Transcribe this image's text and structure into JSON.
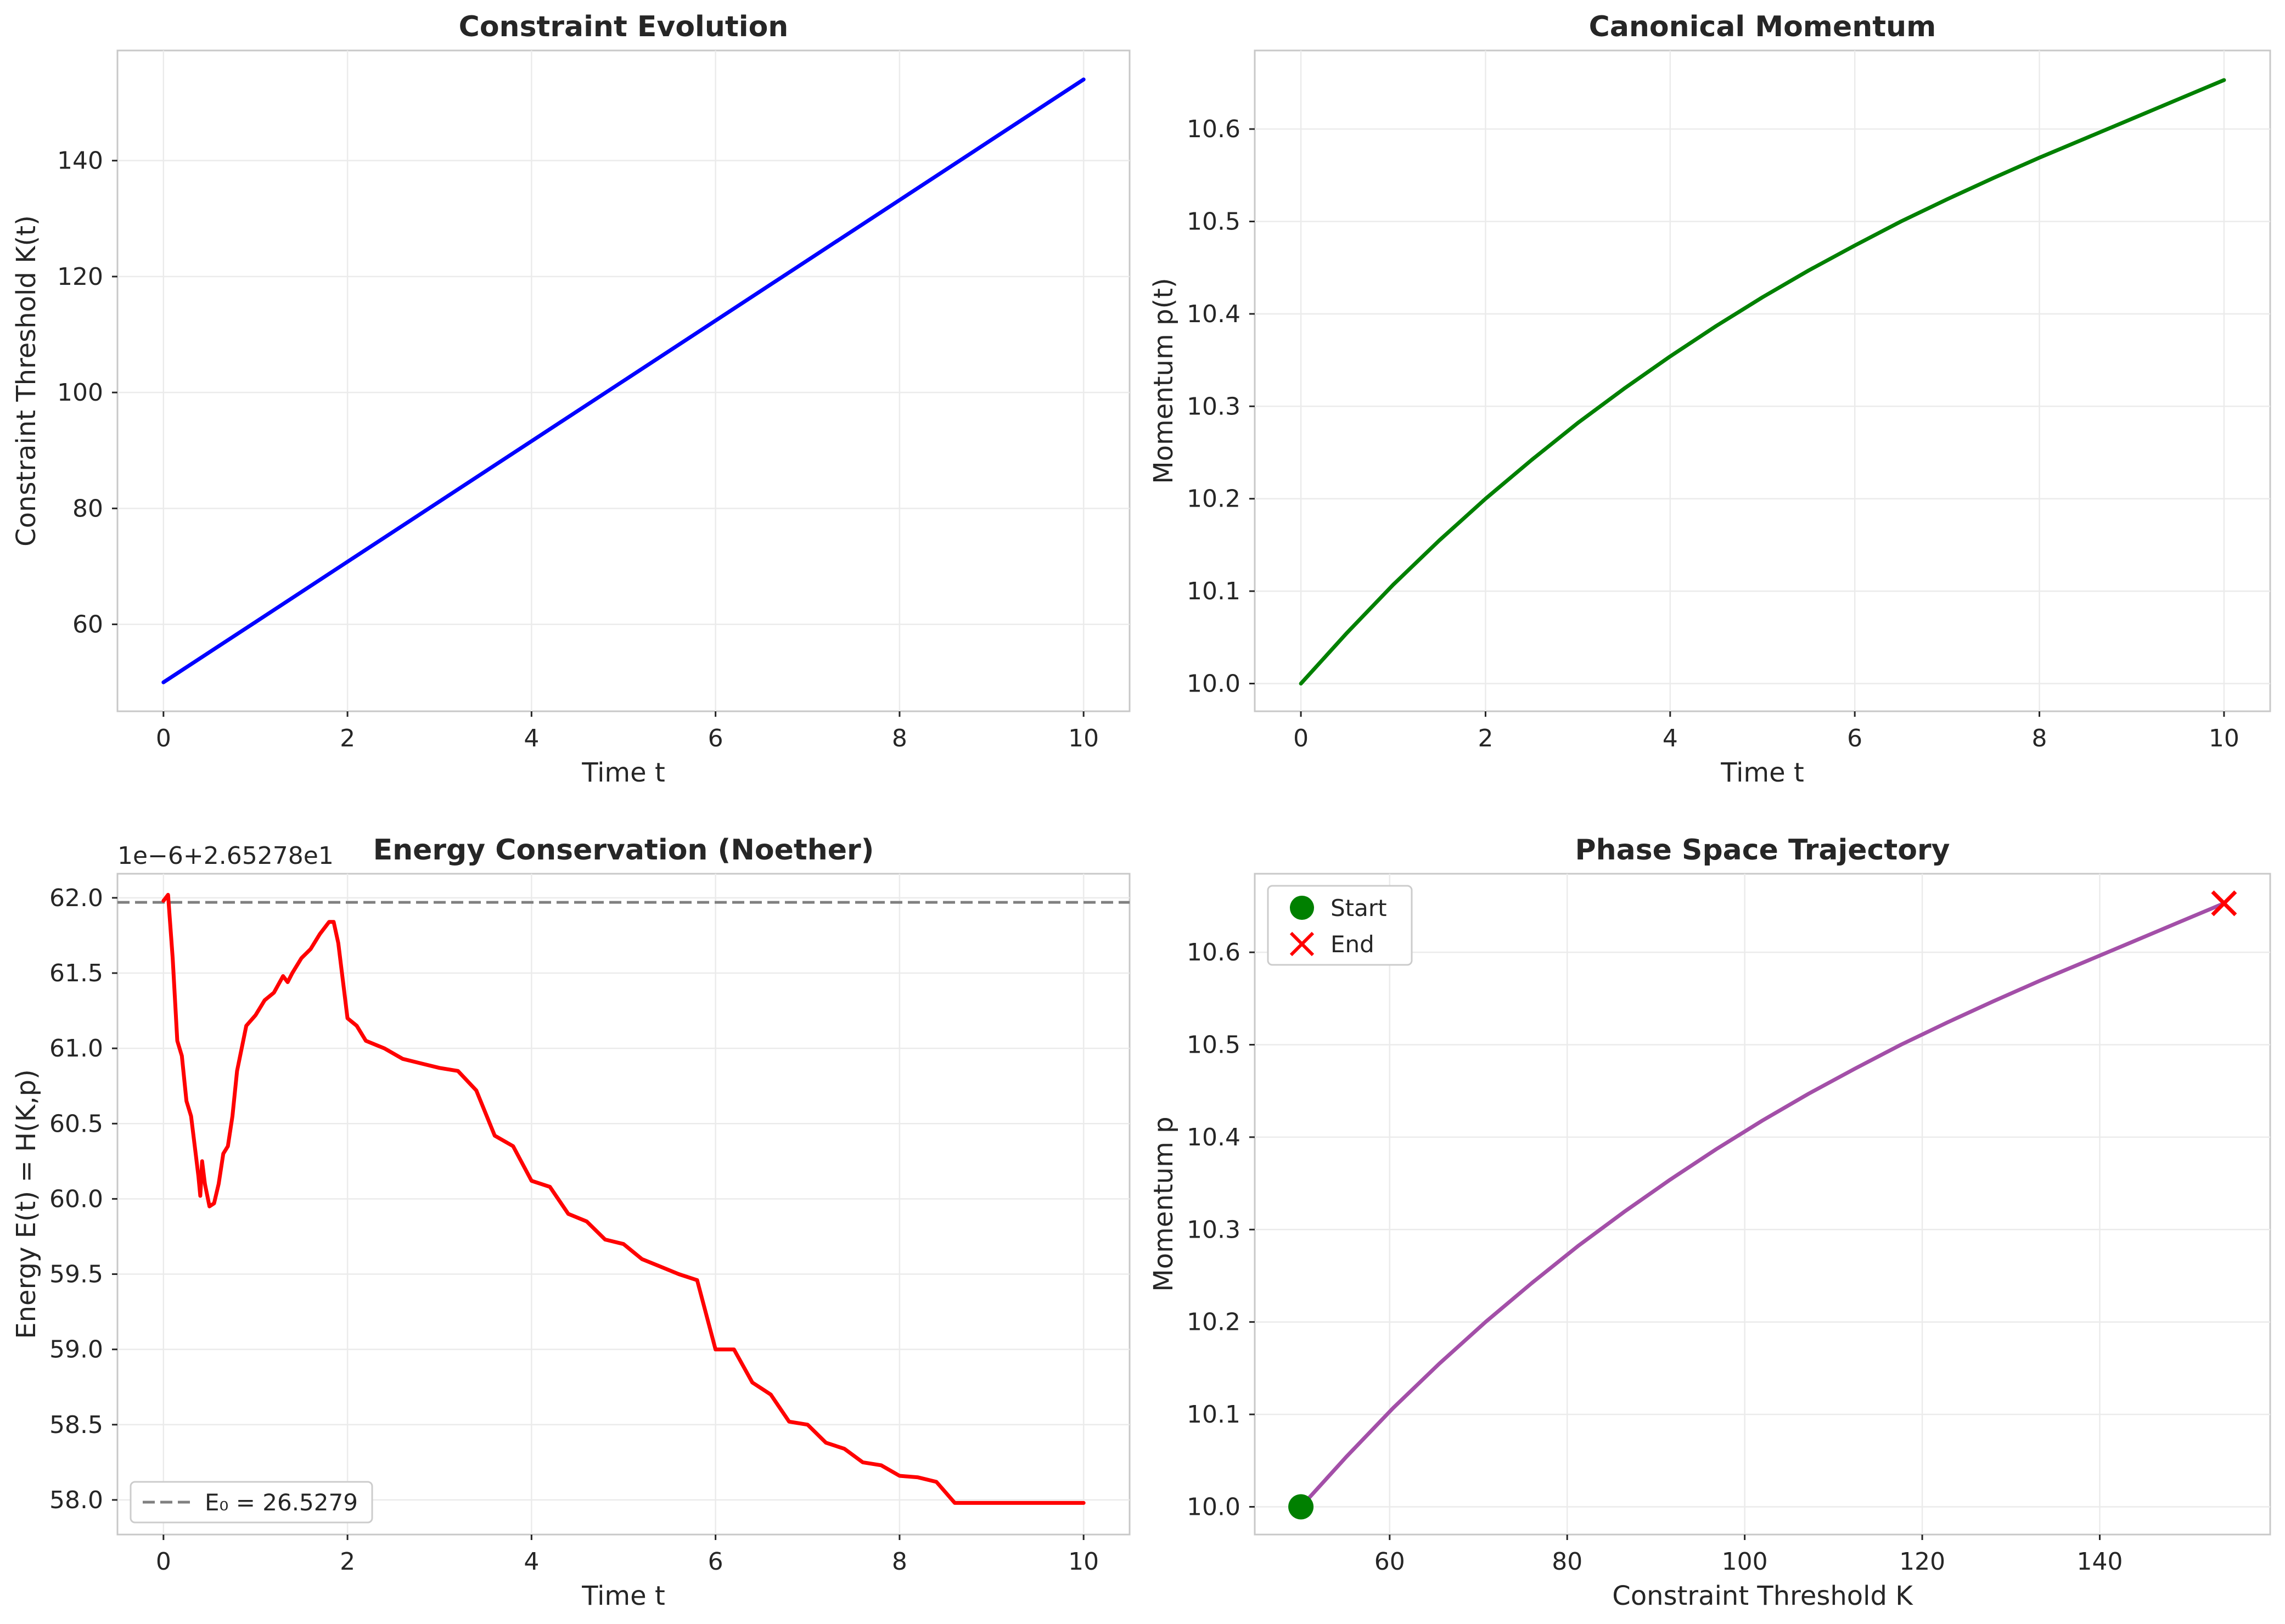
{
  "chart_data": [
    {
      "id": "constraint",
      "type": "line",
      "title": "Constraint Evolution",
      "xlabel": "Time t",
      "ylabel": "Constraint Threshold K(t)",
      "xlim": [
        -0.5,
        10.5
      ],
      "ylim": [
        45,
        159
      ],
      "xticks": [
        0,
        2,
        4,
        6,
        8,
        10
      ],
      "yticks": [
        60,
        80,
        100,
        120,
        140
      ],
      "grid": true,
      "series": [
        {
          "color": "#0000ff",
          "x": [
            0,
            1,
            2,
            3,
            4,
            5,
            6,
            7,
            8,
            9,
            10
          ],
          "y": [
            50,
            60.4,
            70.8,
            81.2,
            91.6,
            102,
            112.4,
            122.8,
            133.2,
            143.6,
            154
          ]
        }
      ]
    },
    {
      "id": "momentum",
      "type": "line",
      "title": "Canonical Momentum",
      "xlabel": "Time t",
      "ylabel": "Momentum p(t)",
      "xlim": [
        -0.5,
        10.5
      ],
      "ylim": [
        9.97,
        10.685
      ],
      "xticks": [
        0,
        2,
        4,
        6,
        8,
        10
      ],
      "yticks": [
        10.0,
        10.1,
        10.2,
        10.3,
        10.4,
        10.5,
        10.6
      ],
      "tick_decimals": 1,
      "grid": true,
      "series": [
        {
          "color": "#008000",
          "x": [
            0,
            0.5,
            1,
            1.5,
            2,
            2.5,
            3,
            3.5,
            4,
            4.5,
            5,
            5.5,
            6,
            6.5,
            7,
            7.5,
            8,
            8.5,
            9,
            9.5,
            10
          ],
          "y": [
            10.0,
            10.055,
            10.107,
            10.155,
            10.2,
            10.242,
            10.282,
            10.319,
            10.354,
            10.387,
            10.418,
            10.447,
            10.474,
            10.5,
            10.524,
            10.547,
            10.569,
            10.59,
            10.611,
            10.632,
            10.653
          ]
        }
      ]
    },
    {
      "id": "energy",
      "type": "line",
      "title": "Energy Conservation (Noether)",
      "xlabel": "Time t",
      "ylabel": "Energy E(t) = H(K,p)",
      "offset_text": "1e−6+2.65278e1",
      "xlim": [
        -0.5,
        10.5
      ],
      "ylim": [
        57.77,
        62.16
      ],
      "xticks": [
        0,
        2,
        4,
        6,
        8,
        10
      ],
      "yticks": [
        58.0,
        58.5,
        59.0,
        59.5,
        60.0,
        60.5,
        61.0,
        61.5,
        62.0
      ],
      "tick_decimals": 1,
      "grid": true,
      "legend": {
        "position": "bottom-left",
        "entries": [
          "E₀ = 26.5279"
        ]
      },
      "reference_line": {
        "y": 61.97,
        "color": "#808080",
        "style": "dashed"
      },
      "series": [
        {
          "color": "#ff0000",
          "x": [
            0,
            0.05,
            0.1,
            0.15,
            0.2,
            0.25,
            0.3,
            0.35,
            0.38,
            0.4,
            0.42,
            0.45,
            0.5,
            0.55,
            0.6,
            0.65,
            0.7,
            0.75,
            0.8,
            0.9,
            1.0,
            1.1,
            1.2,
            1.3,
            1.35,
            1.4,
            1.5,
            1.6,
            1.7,
            1.8,
            1.85,
            1.9,
            2.0,
            2.1,
            2.2,
            2.4,
            2.6,
            2.8,
            3.0,
            3.2,
            3.4,
            3.6,
            3.8,
            4.0,
            4.2,
            4.4,
            4.6,
            4.8,
            5.0,
            5.2,
            5.4,
            5.6,
            5.8,
            6.0,
            6.2,
            6.4,
            6.6,
            6.8,
            7.0,
            7.2,
            7.4,
            7.6,
            7.8,
            8.0,
            8.2,
            8.4,
            8.6,
            8.8,
            9.0,
            9.2,
            9.4,
            9.6,
            9.8,
            10.0
          ],
          "y": [
            61.98,
            62.02,
            61.6,
            61.05,
            60.95,
            60.65,
            60.55,
            60.3,
            60.15,
            60.02,
            60.25,
            60.1,
            59.95,
            59.97,
            60.1,
            60.3,
            60.35,
            60.55,
            60.85,
            61.15,
            61.22,
            61.32,
            61.37,
            61.48,
            61.44,
            61.5,
            61.6,
            61.66,
            61.76,
            61.84,
            61.84,
            61.7,
            61.2,
            61.15,
            61.05,
            61.0,
            60.93,
            60.9,
            60.87,
            60.85,
            60.72,
            60.42,
            60.35,
            60.12,
            60.08,
            59.9,
            59.85,
            59.73,
            59.7,
            59.6,
            59.55,
            59.5,
            59.46,
            59.0,
            59.0,
            58.78,
            58.7,
            58.52,
            58.5,
            58.38,
            58.34,
            58.25,
            58.23,
            58.16,
            58.15,
            58.12,
            57.98,
            57.98,
            57.98,
            57.98,
            57.98,
            57.98,
            57.98,
            57.98
          ]
        }
      ]
    },
    {
      "id": "phase",
      "type": "line",
      "title": "Phase Space Trajectory",
      "xlabel": "Constraint Threshold K",
      "ylabel": "Momentum p",
      "xlim": [
        44.8,
        159.2
      ],
      "ylim": [
        9.97,
        10.685
      ],
      "xticks": [
        60,
        80,
        100,
        120,
        140
      ],
      "yticks": [
        10.0,
        10.1,
        10.2,
        10.3,
        10.4,
        10.5,
        10.6
      ],
      "tick_decimals": 1,
      "grid": true,
      "legend": {
        "position": "top-left",
        "entries": [
          "Start",
          "End"
        ]
      },
      "markers": [
        {
          "name": "Start",
          "shape": "circle",
          "color": "#008000",
          "x": 50,
          "y": 10.0
        },
        {
          "name": "End",
          "shape": "x",
          "color": "#ff0000",
          "x": 154,
          "y": 10.653
        }
      ],
      "series": [
        {
          "color": "#a34fa8",
          "x": [
            50,
            55.2,
            60.4,
            65.6,
            70.8,
            76,
            81.2,
            86.4,
            91.6,
            96.8,
            102,
            107.2,
            112.4,
            117.6,
            122.8,
            128,
            133.2,
            138.4,
            143.6,
            148.8,
            154
          ],
          "y": [
            10.0,
            10.055,
            10.107,
            10.155,
            10.2,
            10.242,
            10.282,
            10.319,
            10.354,
            10.387,
            10.418,
            10.447,
            10.474,
            10.5,
            10.524,
            10.547,
            10.569,
            10.59,
            10.611,
            10.632,
            10.653
          ]
        }
      ]
    }
  ]
}
